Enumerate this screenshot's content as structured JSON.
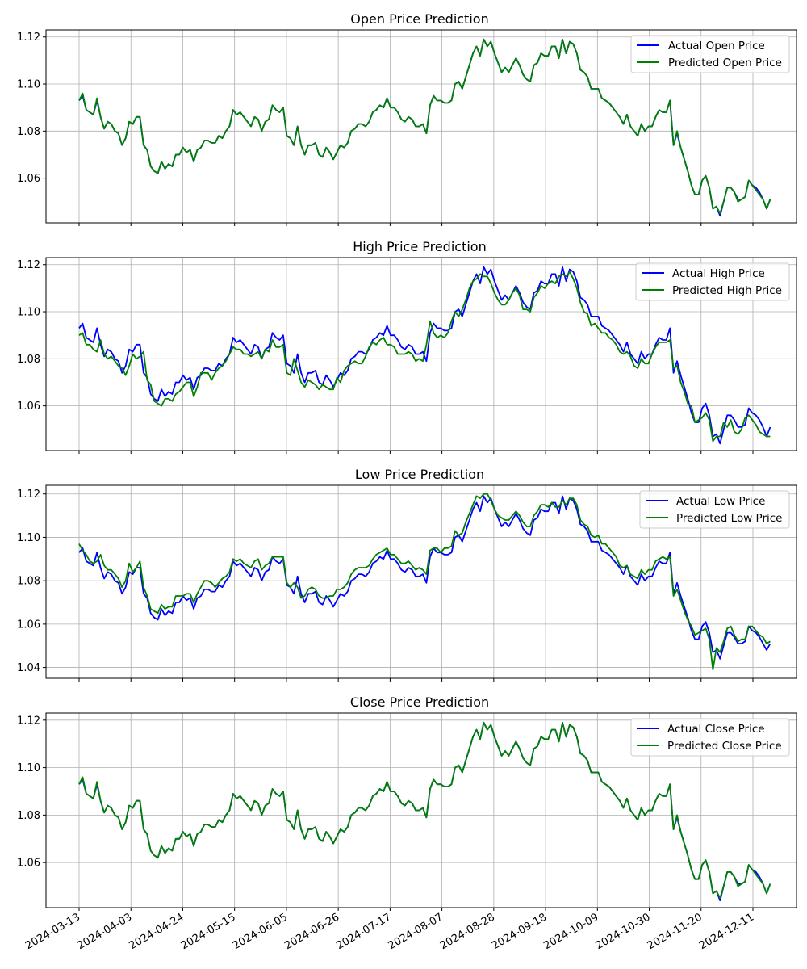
{
  "colors": {
    "actual": "#0000ff",
    "predicted": "#008000",
    "grid": "#b0b0b0",
    "axis": "#000000"
  },
  "chart_data": [
    {
      "type": "line",
      "title": "Open Price Prediction",
      "legend_position": "top-right",
      "grid": true,
      "ylim": [
        1.041,
        1.123
      ],
      "yticks": [
        1.06,
        1.08,
        1.1,
        1.12
      ],
      "ytick_labels": [
        "1.06",
        "1.08",
        "1.10",
        "1.12"
      ],
      "series": [
        {
          "name": "Actual Open Price",
          "role": "actual"
        },
        {
          "name": "Predicted Open Price",
          "role": "predicted"
        }
      ]
    },
    {
      "type": "line",
      "title": "High Price Prediction",
      "legend_position": "top-right",
      "grid": true,
      "ylim": [
        1.041,
        1.123
      ],
      "yticks": [
        1.06,
        1.08,
        1.1,
        1.12
      ],
      "ytick_labels": [
        "1.06",
        "1.08",
        "1.10",
        "1.12"
      ],
      "series": [
        {
          "name": "Actual High Price",
          "role": "actual"
        },
        {
          "name": "Predicted High Price",
          "role": "predicted"
        }
      ]
    },
    {
      "type": "line",
      "title": "Low Price Prediction",
      "legend_position": "top-right",
      "grid": true,
      "ylim": [
        1.035,
        1.124
      ],
      "yticks": [
        1.04,
        1.06,
        1.08,
        1.1,
        1.12
      ],
      "ytick_labels": [
        "1.04",
        "1.06",
        "1.08",
        "1.10",
        "1.12"
      ],
      "series": [
        {
          "name": "Actual Low Price",
          "role": "actual"
        },
        {
          "name": "Predicted Low Price",
          "role": "predicted"
        }
      ]
    },
    {
      "type": "line",
      "title": "Close Price Prediction",
      "legend_position": "top-right",
      "grid": true,
      "ylim": [
        1.041,
        1.123
      ],
      "yticks": [
        1.06,
        1.08,
        1.1,
        1.12
      ],
      "ytick_labels": [
        "1.06",
        "1.08",
        "1.10",
        "1.12"
      ],
      "series": [
        {
          "name": "Actual Close Price",
          "role": "actual"
        },
        {
          "name": "Predicted Close Price",
          "role": "predicted"
        }
      ]
    }
  ],
  "x_axis": {
    "start_date": "2024-03-13",
    "end_date": "2024-12-18",
    "tick_labels": [
      "2024-03-13",
      "2024-04-03",
      "2024-04-24",
      "2024-05-15",
      "2024-06-05",
      "2024-06-26",
      "2024-07-17",
      "2024-08-07",
      "2024-08-28",
      "2024-09-18",
      "2024-10-09",
      "2024-10-30",
      "2024-11-20",
      "2024-12-11"
    ]
  },
  "actual_path": [
    1.093,
    1.095,
    1.089,
    1.088,
    1.087,
    1.093,
    1.086,
    1.081,
    1.084,
    1.083,
    1.08,
    1.079,
    1.074,
    1.077,
    1.084,
    1.083,
    1.086,
    1.086,
    1.074,
    1.072,
    1.065,
    1.063,
    1.062,
    1.067,
    1.064,
    1.066,
    1.065,
    1.07,
    1.07,
    1.073,
    1.071,
    1.072,
    1.067,
    1.072,
    1.073,
    1.076,
    1.076,
    1.075,
    1.075,
    1.078,
    1.077,
    1.08,
    1.082,
    1.089,
    1.087,
    1.088,
    1.086,
    1.084,
    1.082,
    1.086,
    1.085,
    1.08,
    1.084,
    1.085,
    1.091,
    1.089,
    1.088,
    1.09,
    1.078,
    1.077,
    1.074,
    1.082,
    1.074,
    1.07,
    1.074,
    1.074,
    1.075,
    1.07,
    1.069,
    1.073,
    1.071,
    1.068,
    1.071,
    1.074,
    1.073,
    1.075,
    1.08,
    1.081,
    1.083,
    1.083,
    1.082,
    1.084,
    1.088,
    1.089,
    1.091,
    1.09,
    1.094,
    1.09,
    1.09,
    1.088,
    1.085,
    1.084,
    1.086,
    1.085,
    1.082,
    1.082,
    1.083,
    1.079,
    1.091,
    1.095,
    1.093,
    1.093,
    1.092,
    1.092,
    1.093,
    1.1,
    1.101,
    1.098,
    1.103,
    1.108,
    1.113,
    1.116,
    1.112,
    1.119,
    1.116,
    1.118,
    1.113,
    1.109,
    1.105,
    1.107,
    1.105,
    1.108,
    1.111,
    1.108,
    1.104,
    1.102,
    1.101,
    1.108,
    1.109,
    1.113,
    1.112,
    1.112,
    1.116,
    1.116,
    1.111,
    1.119,
    1.113,
    1.118,
    1.117,
    1.113,
    1.106,
    1.105,
    1.103,
    1.098,
    1.098,
    1.098,
    1.094,
    1.093,
    1.092,
    1.09,
    1.088,
    1.086,
    1.083,
    1.087,
    1.082,
    1.08,
    1.078,
    1.083,
    1.08,
    1.082,
    1.082,
    1.086,
    1.089,
    1.088,
    1.088,
    1.093,
    1.074,
    1.079,
    1.073,
    1.068,
    1.063,
    1.057,
    1.053,
    1.053,
    1.059,
    1.061,
    1.056,
    1.047,
    1.048,
    1.044,
    1.05,
    1.056,
    1.056,
    1.054,
    1.051,
    1.051,
    1.052,
    1.059,
    1.057,
    1.056,
    1.054,
    1.051,
    1.047,
    1.051
  ],
  "pred_open_path": [
    1.093,
    1.096,
    1.089,
    1.088,
    1.087,
    1.094,
    1.086,
    1.081,
    1.084,
    1.083,
    1.08,
    1.079,
    1.074,
    1.077,
    1.084,
    1.083,
    1.086,
    1.086,
    1.074,
    1.072,
    1.065,
    1.063,
    1.062,
    1.067,
    1.064,
    1.066,
    1.065,
    1.07,
    1.07,
    1.073,
    1.071,
    1.072,
    1.067,
    1.072,
    1.073,
    1.076,
    1.076,
    1.075,
    1.075,
    1.078,
    1.077,
    1.08,
    1.082,
    1.089,
    1.087,
    1.088,
    1.086,
    1.084,
    1.082,
    1.086,
    1.085,
    1.08,
    1.084,
    1.085,
    1.091,
    1.089,
    1.088,
    1.09,
    1.078,
    1.077,
    1.074,
    1.082,
    1.074,
    1.07,
    1.074,
    1.074,
    1.075,
    1.07,
    1.069,
    1.073,
    1.071,
    1.068,
    1.071,
    1.074,
    1.073,
    1.075,
    1.08,
    1.081,
    1.083,
    1.083,
    1.082,
    1.084,
    1.088,
    1.089,
    1.091,
    1.09,
    1.094,
    1.09,
    1.09,
    1.088,
    1.085,
    1.084,
    1.086,
    1.085,
    1.082,
    1.082,
    1.083,
    1.079,
    1.091,
    1.095,
    1.093,
    1.093,
    1.092,
    1.092,
    1.093,
    1.1,
    1.101,
    1.098,
    1.103,
    1.108,
    1.113,
    1.116,
    1.112,
    1.119,
    1.116,
    1.118,
    1.113,
    1.109,
    1.105,
    1.107,
    1.105,
    1.108,
    1.111,
    1.108,
    1.104,
    1.102,
    1.101,
    1.108,
    1.109,
    1.113,
    1.112,
    1.112,
    1.116,
    1.116,
    1.111,
    1.119,
    1.113,
    1.118,
    1.117,
    1.113,
    1.106,
    1.105,
    1.103,
    1.098,
    1.098,
    1.098,
    1.094,
    1.093,
    1.092,
    1.09,
    1.088,
    1.086,
    1.083,
    1.087,
    1.082,
    1.08,
    1.078,
    1.083,
    1.08,
    1.082,
    1.082,
    1.086,
    1.089,
    1.088,
    1.088,
    1.093,
    1.074,
    1.08,
    1.073,
    1.068,
    1.063,
    1.057,
    1.053,
    1.053,
    1.059,
    1.061,
    1.056,
    1.047,
    1.048,
    1.045,
    1.05,
    1.056,
    1.056,
    1.054,
    1.05,
    1.051,
    1.052,
    1.059,
    1.057,
    1.055,
    1.053,
    1.051,
    1.047,
    1.051
  ],
  "pred_high_path": [
    1.09,
    1.091,
    1.086,
    1.086,
    1.084,
    1.083,
    1.088,
    1.082,
    1.08,
    1.081,
    1.079,
    1.077,
    1.076,
    1.073,
    1.077,
    1.082,
    1.08,
    1.081,
    1.083,
    1.071,
    1.069,
    1.062,
    1.061,
    1.06,
    1.063,
    1.063,
    1.062,
    1.065,
    1.066,
    1.068,
    1.07,
    1.07,
    1.064,
    1.068,
    1.074,
    1.074,
    1.074,
    1.071,
    1.074,
    1.076,
    1.077,
    1.079,
    1.082,
    1.085,
    1.084,
    1.084,
    1.082,
    1.082,
    1.081,
    1.082,
    1.083,
    1.08,
    1.084,
    1.083,
    1.088,
    1.085,
    1.085,
    1.086,
    1.074,
    1.073,
    1.08,
    1.075,
    1.07,
    1.068,
    1.071,
    1.07,
    1.069,
    1.067,
    1.069,
    1.068,
    1.067,
    1.067,
    1.072,
    1.07,
    1.075,
    1.077,
    1.078,
    1.079,
    1.078,
    1.078,
    1.081,
    1.085,
    1.087,
    1.086,
    1.088,
    1.089,
    1.086,
    1.086,
    1.085,
    1.082,
    1.082,
    1.082,
    1.083,
    1.082,
    1.079,
    1.08,
    1.079,
    1.086,
    1.096,
    1.091,
    1.089,
    1.09,
    1.089,
    1.091,
    1.096,
    1.1,
    1.098,
    1.101,
    1.105,
    1.11,
    1.113,
    1.114,
    1.116,
    1.115,
    1.115,
    1.112,
    1.108,
    1.105,
    1.103,
    1.103,
    1.105,
    1.108,
    1.11,
    1.107,
    1.101,
    1.101,
    1.1,
    1.106,
    1.108,
    1.111,
    1.11,
    1.112,
    1.113,
    1.112,
    1.115,
    1.116,
    1.115,
    1.117,
    1.114,
    1.11,
    1.104,
    1.1,
    1.099,
    1.094,
    1.095,
    1.093,
    1.091,
    1.091,
    1.089,
    1.088,
    1.086,
    1.083,
    1.082,
    1.083,
    1.081,
    1.077,
    1.076,
    1.08,
    1.078,
    1.078,
    1.082,
    1.085,
    1.087,
    1.087,
    1.087,
    1.088,
    1.076,
    1.077,
    1.07,
    1.066,
    1.061,
    1.06,
    1.053,
    1.054,
    1.055,
    1.057,
    1.054,
    1.045,
    1.047,
    1.047,
    1.053,
    1.051,
    1.054,
    1.049,
    1.048,
    1.05,
    1.055,
    1.056,
    1.054,
    1.052,
    1.049,
    1.048,
    1.047,
    1.047
  ],
  "actual_low_path": [
    1.093,
    1.095,
    1.089,
    1.088,
    1.087,
    1.093,
    1.086,
    1.081,
    1.084,
    1.083,
    1.08,
    1.079,
    1.074,
    1.077,
    1.084,
    1.083,
    1.086,
    1.086,
    1.074,
    1.072,
    1.065,
    1.063,
    1.062,
    1.067,
    1.064,
    1.066,
    1.065,
    1.07,
    1.07,
    1.073,
    1.071,
    1.072,
    1.067,
    1.072,
    1.073,
    1.076,
    1.076,
    1.075,
    1.075,
    1.078,
    1.077,
    1.08,
    1.082,
    1.089,
    1.087,
    1.088,
    1.086,
    1.084,
    1.082,
    1.086,
    1.085,
    1.08,
    1.084,
    1.085,
    1.091,
    1.089,
    1.088,
    1.09,
    1.078,
    1.077,
    1.074,
    1.082,
    1.074,
    1.07,
    1.074,
    1.074,
    1.075,
    1.07,
    1.069,
    1.073,
    1.071,
    1.068,
    1.071,
    1.074,
    1.073,
    1.075,
    1.08,
    1.081,
    1.083,
    1.083,
    1.082,
    1.084,
    1.088,
    1.089,
    1.091,
    1.09,
    1.094,
    1.09,
    1.09,
    1.088,
    1.085,
    1.084,
    1.086,
    1.085,
    1.082,
    1.082,
    1.083,
    1.079,
    1.091,
    1.095,
    1.093,
    1.093,
    1.092,
    1.092,
    1.093,
    1.1,
    1.101,
    1.098,
    1.103,
    1.108,
    1.113,
    1.116,
    1.112,
    1.119,
    1.116,
    1.118,
    1.113,
    1.109,
    1.105,
    1.107,
    1.105,
    1.108,
    1.111,
    1.108,
    1.104,
    1.102,
    1.101,
    1.108,
    1.109,
    1.113,
    1.112,
    1.112,
    1.116,
    1.116,
    1.111,
    1.119,
    1.113,
    1.118,
    1.117,
    1.113,
    1.106,
    1.105,
    1.103,
    1.098,
    1.098,
    1.098,
    1.094,
    1.093,
    1.092,
    1.09,
    1.088,
    1.086,
    1.083,
    1.087,
    1.082,
    1.08,
    1.078,
    1.083,
    1.08,
    1.082,
    1.082,
    1.086,
    1.089,
    1.088,
    1.088,
    1.093,
    1.074,
    1.079,
    1.073,
    1.068,
    1.063,
    1.057,
    1.053,
    1.053,
    1.059,
    1.061,
    1.056,
    1.047,
    1.048,
    1.044,
    1.05,
    1.056,
    1.056,
    1.054,
    1.051,
    1.051,
    1.052,
    1.059,
    1.057,
    1.056,
    1.054,
    1.051,
    1.048,
    1.051
  ],
  "pred_low_path": [
    1.097,
    1.094,
    1.092,
    1.089,
    1.088,
    1.089,
    1.092,
    1.087,
    1.085,
    1.085,
    1.083,
    1.081,
    1.077,
    1.08,
    1.088,
    1.084,
    1.086,
    1.089,
    1.077,
    1.073,
    1.067,
    1.066,
    1.065,
    1.069,
    1.067,
    1.068,
    1.068,
    1.073,
    1.073,
    1.073,
    1.074,
    1.074,
    1.07,
    1.074,
    1.077,
    1.08,
    1.08,
    1.079,
    1.077,
    1.079,
    1.081,
    1.082,
    1.084,
    1.09,
    1.089,
    1.09,
    1.088,
    1.087,
    1.086,
    1.089,
    1.09,
    1.085,
    1.087,
    1.088,
    1.091,
    1.091,
    1.091,
    1.091,
    1.079,
    1.077,
    1.079,
    1.077,
    1.072,
    1.073,
    1.076,
    1.077,
    1.076,
    1.073,
    1.072,
    1.072,
    1.073,
    1.073,
    1.076,
    1.076,
    1.077,
    1.079,
    1.083,
    1.085,
    1.086,
    1.086,
    1.086,
    1.087,
    1.09,
    1.092,
    1.093,
    1.094,
    1.095,
    1.092,
    1.092,
    1.09,
    1.088,
    1.088,
    1.089,
    1.087,
    1.085,
    1.086,
    1.085,
    1.083,
    1.094,
    1.095,
    1.095,
    1.093,
    1.095,
    1.095,
    1.096,
    1.103,
    1.101,
    1.102,
    1.107,
    1.111,
    1.115,
    1.119,
    1.118,
    1.12,
    1.12,
    1.117,
    1.113,
    1.11,
    1.109,
    1.108,
    1.108,
    1.11,
    1.112,
    1.11,
    1.107,
    1.105,
    1.105,
    1.11,
    1.112,
    1.115,
    1.115,
    1.114,
    1.116,
    1.114,
    1.114,
    1.117,
    1.115,
    1.118,
    1.118,
    1.115,
    1.108,
    1.106,
    1.105,
    1.101,
    1.1,
    1.101,
    1.097,
    1.097,
    1.095,
    1.093,
    1.091,
    1.087,
    1.086,
    1.087,
    1.083,
    1.082,
    1.081,
    1.085,
    1.083,
    1.085,
    1.085,
    1.089,
    1.09,
    1.091,
    1.09,
    1.091,
    1.073,
    1.076,
    1.071,
    1.066,
    1.062,
    1.059,
    1.055,
    1.056,
    1.057,
    1.058,
    1.053,
    1.039,
    1.049,
    1.047,
    1.052,
    1.058,
    1.059,
    1.055,
    1.052,
    1.053,
    1.053,
    1.059,
    1.059,
    1.057,
    1.055,
    1.054,
    1.051,
    1.052
  ],
  "pred_close_path": [
    1.093,
    1.096,
    1.089,
    1.088,
    1.087,
    1.094,
    1.086,
    1.081,
    1.084,
    1.083,
    1.08,
    1.079,
    1.074,
    1.077,
    1.084,
    1.083,
    1.086,
    1.086,
    1.074,
    1.072,
    1.065,
    1.063,
    1.062,
    1.067,
    1.064,
    1.066,
    1.065,
    1.07,
    1.07,
    1.073,
    1.071,
    1.072,
    1.067,
    1.072,
    1.073,
    1.076,
    1.076,
    1.075,
    1.075,
    1.078,
    1.077,
    1.08,
    1.082,
    1.089,
    1.087,
    1.088,
    1.086,
    1.084,
    1.082,
    1.086,
    1.085,
    1.08,
    1.084,
    1.085,
    1.091,
    1.089,
    1.088,
    1.09,
    1.078,
    1.077,
    1.074,
    1.082,
    1.074,
    1.07,
    1.074,
    1.074,
    1.075,
    1.07,
    1.069,
    1.073,
    1.071,
    1.068,
    1.071,
    1.074,
    1.073,
    1.075,
    1.08,
    1.081,
    1.083,
    1.083,
    1.082,
    1.084,
    1.088,
    1.089,
    1.091,
    1.09,
    1.094,
    1.09,
    1.09,
    1.088,
    1.085,
    1.084,
    1.086,
    1.085,
    1.082,
    1.082,
    1.083,
    1.079,
    1.091,
    1.095,
    1.093,
    1.093,
    1.092,
    1.092,
    1.093,
    1.1,
    1.101,
    1.098,
    1.103,
    1.108,
    1.113,
    1.116,
    1.112,
    1.119,
    1.116,
    1.118,
    1.113,
    1.109,
    1.105,
    1.107,
    1.105,
    1.108,
    1.111,
    1.108,
    1.104,
    1.102,
    1.101,
    1.108,
    1.109,
    1.113,
    1.112,
    1.112,
    1.116,
    1.116,
    1.111,
    1.119,
    1.113,
    1.118,
    1.117,
    1.113,
    1.106,
    1.105,
    1.103,
    1.098,
    1.098,
    1.098,
    1.094,
    1.093,
    1.092,
    1.09,
    1.088,
    1.086,
    1.083,
    1.087,
    1.082,
    1.08,
    1.078,
    1.083,
    1.08,
    1.082,
    1.082,
    1.086,
    1.089,
    1.088,
    1.088,
    1.093,
    1.074,
    1.08,
    1.073,
    1.068,
    1.063,
    1.057,
    1.053,
    1.053,
    1.059,
    1.061,
    1.056,
    1.047,
    1.048,
    1.045,
    1.05,
    1.056,
    1.056,
    1.054,
    1.05,
    1.051,
    1.052,
    1.059,
    1.057,
    1.055,
    1.053,
    1.051,
    1.047,
    1.051
  ]
}
